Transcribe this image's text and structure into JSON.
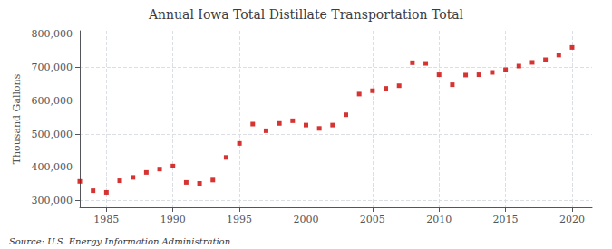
{
  "chart_data": {
    "type": "scatter",
    "title": "Annual Iowa Total Distillate Transportation Total",
    "ylabel": "Thousand Gallons",
    "annotation": "Source: U.S. Energy Information Administration",
    "x": [
      1983,
      1984,
      1985,
      1986,
      1987,
      1988,
      1989,
      1990,
      1991,
      1992,
      1993,
      1994,
      1995,
      1996,
      1997,
      1998,
      1999,
      2000,
      2001,
      2002,
      2003,
      2004,
      2005,
      2006,
      2007,
      2008,
      2009,
      2010,
      2011,
      2012,
      2013,
      2014,
      2015,
      2016,
      2017,
      2018,
      2019,
      2020
    ],
    "values": [
      358000,
      330000,
      325000,
      360000,
      370000,
      385000,
      395000,
      404000,
      355000,
      352000,
      362000,
      430000,
      472000,
      530000,
      510000,
      532000,
      540000,
      527000,
      517000,
      527000,
      558000,
      620000,
      630000,
      637000,
      645000,
      714000,
      712000,
      678000,
      648000,
      677000,
      678000,
      685000,
      693000,
      704000,
      715000,
      723000,
      737000,
      760000
    ],
    "color": "#cc0000",
    "marker": "square",
    "xlim": [
      1983,
      2021.5
    ],
    "xticks": [
      1985,
      1990,
      1995,
      2000,
      2005,
      2010,
      2015,
      2020
    ],
    "ylim": [
      280000,
      810000
    ],
    "yticks": [
      {
        "value": 300000,
        "label": "300,000"
      },
      {
        "value": 400000,
        "label": "400,000"
      },
      {
        "value": 500000,
        "label": "500,000"
      },
      {
        "value": 600000,
        "label": "600,000"
      },
      {
        "value": 700000,
        "label": "700,000"
      },
      {
        "value": 800000,
        "label": "800,000"
      }
    ],
    "grid": true
  }
}
